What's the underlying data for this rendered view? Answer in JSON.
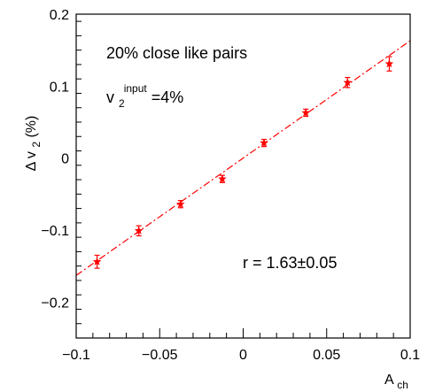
{
  "chart_data": {
    "type": "scatter",
    "title": "",
    "xlabel_main": "A",
    "xlabel_sub": "ch",
    "ylabel": "Δ v",
    "ylabel_sub": "2",
    "ylabel_unit": " (%)",
    "xlim": [
      -0.1,
      0.1
    ],
    "ylim": [
      -0.25,
      0.2
    ],
    "x_major_ticks": [
      -0.1,
      -0.05,
      0,
      0.05,
      0.1
    ],
    "x_tick_labels": [
      "−0.1",
      "−0.05",
      "0",
      "0.05",
      "0.1"
    ],
    "y_major_ticks": [
      -0.2,
      -0.1,
      0,
      0.1,
      0.2
    ],
    "y_tick_labels": [
      "−0.2",
      "−0.1",
      "0",
      "0.1",
      "0.2"
    ],
    "grid": false,
    "marker_color": "#ff0000",
    "fit_color": "#ff0000",
    "series": [
      {
        "x": [
          -0.0875,
          -0.0625,
          -0.0375,
          -0.0125,
          0.0125,
          0.0375,
          0.0625,
          0.0875
        ],
        "y": [
          -0.144,
          -0.101,
          -0.064,
          -0.029,
          0.021,
          0.063,
          0.105,
          0.131
        ],
        "err": [
          0.009,
          0.007,
          0.005,
          0.005,
          0.005,
          0.005,
          0.007,
          0.01
        ]
      }
    ],
    "fit": {
      "x": [
        -0.1,
        0.1
      ],
      "y": [
        -0.163,
        0.163
      ]
    },
    "annotations": {
      "line1": "20% close like pairs",
      "v_main": "v",
      "v_sub": "2",
      "v_sup": "input",
      "v_rest": "=4%",
      "r_text": "r = 1.63±0.05"
    }
  }
}
